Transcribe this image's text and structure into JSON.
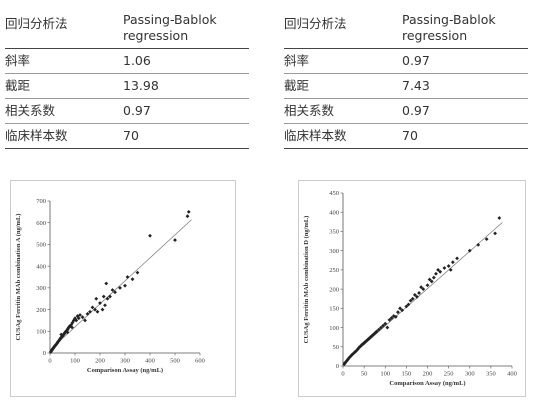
{
  "tables": [
    {
      "header": {
        "col1": "回归分析法",
        "col2": "Passing-Bablok regression"
      },
      "rows": [
        {
          "label": "斜率",
          "value": "1.06"
        },
        {
          "label": "截距",
          "value": "13.98"
        },
        {
          "label": "相关系数",
          "value": "0.97"
        },
        {
          "label": "临床样本数",
          "value": "70"
        }
      ]
    },
    {
      "header": {
        "col1": "回归分析法",
        "col2": "Passing-Bablok regression"
      },
      "rows": [
        {
          "label": "斜率",
          "value": "0.97"
        },
        {
          "label": "截距",
          "value": "7.43"
        },
        {
          "label": "相关系数",
          "value": "0.97"
        },
        {
          "label": "临床样本数",
          "value": "70"
        }
      ]
    }
  ],
  "chart_data": [
    {
      "type": "scatter",
      "title": "",
      "xlabel": "Comparison Assay (ng/mL)",
      "ylabel": "CUSAg Ferritin MAb combination A (ng/mL)",
      "xlim": [
        0,
        600
      ],
      "ylim": [
        0,
        700
      ],
      "xticks": [
        0,
        100,
        200,
        300,
        400,
        500,
        600
      ],
      "yticks": [
        0,
        100,
        200,
        300,
        400,
        500,
        600,
        700
      ],
      "grid": false,
      "regression": {
        "slope": 1.06,
        "intercept": 13.98
      },
      "marker_color": "#222222",
      "line_color": "#777777",
      "points": [
        [
          3,
          5
        ],
        [
          6,
          10
        ],
        [
          8,
          14
        ],
        [
          10,
          18
        ],
        [
          12,
          20
        ],
        [
          14,
          24
        ],
        [
          16,
          27
        ],
        [
          18,
          30
        ],
        [
          20,
          33
        ],
        [
          22,
          36
        ],
        [
          25,
          40
        ],
        [
          28,
          44
        ],
        [
          30,
          48
        ],
        [
          32,
          52
        ],
        [
          35,
          56
        ],
        [
          38,
          60
        ],
        [
          40,
          64
        ],
        [
          42,
          68
        ],
        [
          45,
          72
        ],
        [
          48,
          76
        ],
        [
          50,
          78
        ],
        [
          52,
          82
        ],
        [
          55,
          86
        ],
        [
          58,
          90
        ],
        [
          60,
          95
        ],
        [
          62,
          98
        ],
        [
          65,
          100
        ],
        [
          68,
          104
        ],
        [
          70,
          108
        ],
        [
          72,
          112
        ],
        [
          75,
          118
        ],
        [
          78,
          122
        ],
        [
          80,
          125
        ],
        [
          85,
          130
        ],
        [
          88,
          118
        ],
        [
          90,
          140
        ],
        [
          95,
          150
        ],
        [
          100,
          160
        ],
        [
          105,
          150
        ],
        [
          110,
          170
        ],
        [
          115,
          160
        ],
        [
          120,
          175
        ],
        [
          130,
          165
        ],
        [
          140,
          150
        ],
        [
          150,
          180
        ],
        [
          160,
          190
        ],
        [
          170,
          210
        ],
        [
          180,
          200
        ],
        [
          185,
          250
        ],
        [
          190,
          190
        ],
        [
          200,
          230
        ],
        [
          210,
          200
        ],
        [
          215,
          260
        ],
        [
          220,
          220
        ],
        [
          225,
          320
        ],
        [
          230,
          250
        ],
        [
          240,
          260
        ],
        [
          250,
          290
        ],
        [
          260,
          280
        ],
        [
          280,
          300
        ],
        [
          300,
          310
        ],
        [
          310,
          350
        ],
        [
          330,
          340
        ],
        [
          350,
          370
        ],
        [
          400,
          540
        ],
        [
          500,
          520
        ],
        [
          550,
          630
        ],
        [
          555,
          650
        ],
        [
          45,
          85
        ],
        [
          70,
          95
        ]
      ]
    },
    {
      "type": "scatter",
      "title": "",
      "xlabel": "Comparison Assay (ng/mL)",
      "ylabel": "CUSAg Ferritin MAb combination D (ng/mL)",
      "xlim": [
        0,
        400
      ],
      "ylim": [
        0,
        450
      ],
      "xticks": [
        0,
        50,
        100,
        150,
        200,
        250,
        300,
        350,
        400
      ],
      "yticks": [
        0,
        50,
        100,
        150,
        200,
        250,
        300,
        350,
        400,
        450
      ],
      "grid": false,
      "regression": {
        "slope": 0.97,
        "intercept": 7.43
      },
      "marker_color": "#222222",
      "line_color": "#777777",
      "points": [
        [
          3,
          5
        ],
        [
          5,
          8
        ],
        [
          8,
          12
        ],
        [
          10,
          15
        ],
        [
          12,
          18
        ],
        [
          15,
          22
        ],
        [
          18,
          25
        ],
        [
          20,
          28
        ],
        [
          22,
          30
        ],
        [
          25,
          33
        ],
        [
          28,
          36
        ],
        [
          30,
          38
        ],
        [
          32,
          40
        ],
        [
          35,
          44
        ],
        [
          38,
          48
        ],
        [
          40,
          50
        ],
        [
          42,
          52
        ],
        [
          45,
          56
        ],
        [
          48,
          58
        ],
        [
          50,
          60
        ],
        [
          52,
          62
        ],
        [
          55,
          65
        ],
        [
          58,
          68
        ],
        [
          60,
          70
        ],
        [
          62,
          72
        ],
        [
          65,
          75
        ],
        [
          68,
          78
        ],
        [
          70,
          80
        ],
        [
          72,
          82
        ],
        [
          75,
          85
        ],
        [
          78,
          88
        ],
        [
          80,
          90
        ],
        [
          85,
          95
        ],
        [
          90,
          100
        ],
        [
          95,
          105
        ],
        [
          100,
          110
        ],
        [
          105,
          100
        ],
        [
          110,
          120
        ],
        [
          115,
          125
        ],
        [
          120,
          130
        ],
        [
          125,
          128
        ],
        [
          130,
          140
        ],
        [
          135,
          150
        ],
        [
          140,
          145
        ],
        [
          150,
          155
        ],
        [
          155,
          160
        ],
        [
          160,
          170
        ],
        [
          165,
          175
        ],
        [
          170,
          185
        ],
        [
          175,
          180
        ],
        [
          180,
          190
        ],
        [
          185,
          205
        ],
        [
          190,
          200
        ],
        [
          200,
          210
        ],
        [
          205,
          225
        ],
        [
          210,
          220
        ],
        [
          215,
          230
        ],
        [
          220,
          240
        ],
        [
          225,
          250
        ],
        [
          230,
          245
        ],
        [
          240,
          255
        ],
        [
          250,
          260
        ],
        [
          255,
          250
        ],
        [
          260,
          270
        ],
        [
          270,
          280
        ],
        [
          300,
          300
        ],
        [
          320,
          315
        ],
        [
          340,
          330
        ],
        [
          360,
          345
        ],
        [
          370,
          385
        ]
      ]
    }
  ]
}
